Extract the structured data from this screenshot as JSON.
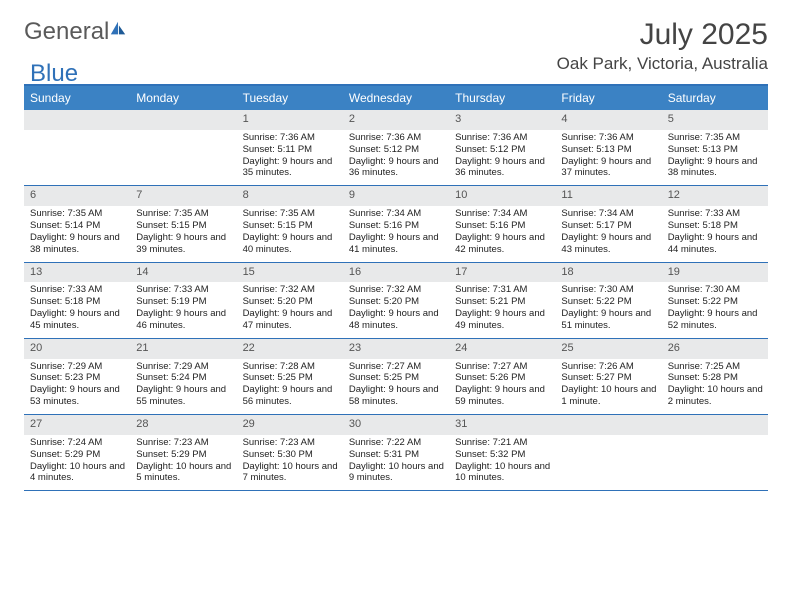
{
  "brand": {
    "name_a": "General",
    "name_b": "Blue"
  },
  "title": "July 2025",
  "location": "Oak Park, Victoria, Australia",
  "colors": {
    "header_bg": "#3b82c4",
    "row_border": "#2f71b8",
    "daynum_bg": "#e8e9ea",
    "text": "#222222",
    "brand_gray": "#5a5a5a",
    "brand_blue": "#2f71b8"
  },
  "dow": [
    "Sunday",
    "Monday",
    "Tuesday",
    "Wednesday",
    "Thursday",
    "Friday",
    "Saturday"
  ],
  "weeks": [
    [
      {
        "n": "",
        "empty": true
      },
      {
        "n": "",
        "empty": true
      },
      {
        "n": "1",
        "sr": "7:36 AM",
        "ss": "5:11 PM",
        "dl": "9 hours and 35 minutes."
      },
      {
        "n": "2",
        "sr": "7:36 AM",
        "ss": "5:12 PM",
        "dl": "9 hours and 36 minutes."
      },
      {
        "n": "3",
        "sr": "7:36 AM",
        "ss": "5:12 PM",
        "dl": "9 hours and 36 minutes."
      },
      {
        "n": "4",
        "sr": "7:36 AM",
        "ss": "5:13 PM",
        "dl": "9 hours and 37 minutes."
      },
      {
        "n": "5",
        "sr": "7:35 AM",
        "ss": "5:13 PM",
        "dl": "9 hours and 38 minutes."
      }
    ],
    [
      {
        "n": "6",
        "sr": "7:35 AM",
        "ss": "5:14 PM",
        "dl": "9 hours and 38 minutes."
      },
      {
        "n": "7",
        "sr": "7:35 AM",
        "ss": "5:15 PM",
        "dl": "9 hours and 39 minutes."
      },
      {
        "n": "8",
        "sr": "7:35 AM",
        "ss": "5:15 PM",
        "dl": "9 hours and 40 minutes."
      },
      {
        "n": "9",
        "sr": "7:34 AM",
        "ss": "5:16 PM",
        "dl": "9 hours and 41 minutes."
      },
      {
        "n": "10",
        "sr": "7:34 AM",
        "ss": "5:16 PM",
        "dl": "9 hours and 42 minutes."
      },
      {
        "n": "11",
        "sr": "7:34 AM",
        "ss": "5:17 PM",
        "dl": "9 hours and 43 minutes."
      },
      {
        "n": "12",
        "sr": "7:33 AM",
        "ss": "5:18 PM",
        "dl": "9 hours and 44 minutes."
      }
    ],
    [
      {
        "n": "13",
        "sr": "7:33 AM",
        "ss": "5:18 PM",
        "dl": "9 hours and 45 minutes."
      },
      {
        "n": "14",
        "sr": "7:33 AM",
        "ss": "5:19 PM",
        "dl": "9 hours and 46 minutes."
      },
      {
        "n": "15",
        "sr": "7:32 AM",
        "ss": "5:20 PM",
        "dl": "9 hours and 47 minutes."
      },
      {
        "n": "16",
        "sr": "7:32 AM",
        "ss": "5:20 PM",
        "dl": "9 hours and 48 minutes."
      },
      {
        "n": "17",
        "sr": "7:31 AM",
        "ss": "5:21 PM",
        "dl": "9 hours and 49 minutes."
      },
      {
        "n": "18",
        "sr": "7:30 AM",
        "ss": "5:22 PM",
        "dl": "9 hours and 51 minutes."
      },
      {
        "n": "19",
        "sr": "7:30 AM",
        "ss": "5:22 PM",
        "dl": "9 hours and 52 minutes."
      }
    ],
    [
      {
        "n": "20",
        "sr": "7:29 AM",
        "ss": "5:23 PM",
        "dl": "9 hours and 53 minutes."
      },
      {
        "n": "21",
        "sr": "7:29 AM",
        "ss": "5:24 PM",
        "dl": "9 hours and 55 minutes."
      },
      {
        "n": "22",
        "sr": "7:28 AM",
        "ss": "5:25 PM",
        "dl": "9 hours and 56 minutes."
      },
      {
        "n": "23",
        "sr": "7:27 AM",
        "ss": "5:25 PM",
        "dl": "9 hours and 58 minutes."
      },
      {
        "n": "24",
        "sr": "7:27 AM",
        "ss": "5:26 PM",
        "dl": "9 hours and 59 minutes."
      },
      {
        "n": "25",
        "sr": "7:26 AM",
        "ss": "5:27 PM",
        "dl": "10 hours and 1 minute."
      },
      {
        "n": "26",
        "sr": "7:25 AM",
        "ss": "5:28 PM",
        "dl": "10 hours and 2 minutes."
      }
    ],
    [
      {
        "n": "27",
        "sr": "7:24 AM",
        "ss": "5:29 PM",
        "dl": "10 hours and 4 minutes."
      },
      {
        "n": "28",
        "sr": "7:23 AM",
        "ss": "5:29 PM",
        "dl": "10 hours and 5 minutes."
      },
      {
        "n": "29",
        "sr": "7:23 AM",
        "ss": "5:30 PM",
        "dl": "10 hours and 7 minutes."
      },
      {
        "n": "30",
        "sr": "7:22 AM",
        "ss": "5:31 PM",
        "dl": "10 hours and 9 minutes."
      },
      {
        "n": "31",
        "sr": "7:21 AM",
        "ss": "5:32 PM",
        "dl": "10 hours and 10 minutes."
      },
      {
        "n": "",
        "empty": true
      },
      {
        "n": "",
        "empty": true
      }
    ]
  ],
  "labels": {
    "sunrise": "Sunrise:",
    "sunset": "Sunset:",
    "daylight": "Daylight:"
  }
}
